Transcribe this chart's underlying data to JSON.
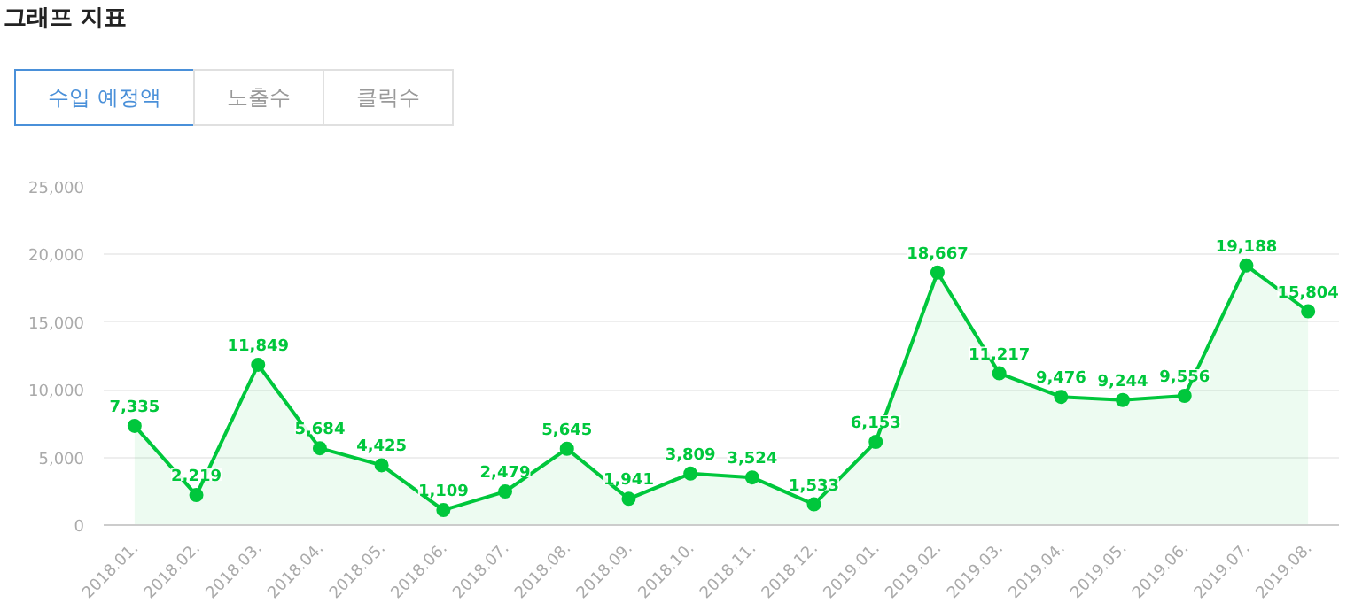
{
  "chart_data": {
    "type": "area",
    "title": "그래프 지표",
    "annotations": [
      "수입 예정액",
      "노출수",
      "클릭수"
    ],
    "categories": [
      "2018.01.",
      "2018.02.",
      "2018.03.",
      "2018.04.",
      "2018.05.",
      "2018.06.",
      "2018.07.",
      "2018.08.",
      "2018.09.",
      "2018.10.",
      "2018.11.",
      "2018.12.",
      "2019.01.",
      "2019.02.",
      "2019.03.",
      "2019.04.",
      "2019.05.",
      "2019.06.",
      "2019.07.",
      "2019.08."
    ],
    "series": [
      {
        "color": "#00c73c",
        "values": [
          7335,
          2219,
          11849,
          5684,
          4425,
          1109,
          2479,
          5645,
          1941,
          3809,
          3524,
          1533,
          6153,
          18667,
          11217,
          9476,
          9244,
          9556,
          19188,
          15804
        ],
        "value_labels": [
          "7,335",
          "2,219",
          "11,849",
          "5,684",
          "4,425",
          "1,109",
          "2,479",
          "5,645",
          "1,941",
          "3,809",
          "3,524",
          "1,533",
          "6,153",
          "18,667",
          "11,217",
          "9,476",
          "9,244",
          "9,556",
          "19,188",
          "15,804"
        ]
      }
    ],
    "ylim": [
      0,
      25000
    ],
    "yticks": [
      {
        "value": 0,
        "label": "0"
      },
      {
        "value": 5000,
        "label": "5,000"
      },
      {
        "value": 10000,
        "label": "10,000"
      },
      {
        "value": 15000,
        "label": "15,000"
      },
      {
        "value": 20000,
        "label": "20,000"
      },
      {
        "value": 25000,
        "label": "25,000"
      }
    ],
    "grid": "y",
    "marker": "circle"
  }
}
